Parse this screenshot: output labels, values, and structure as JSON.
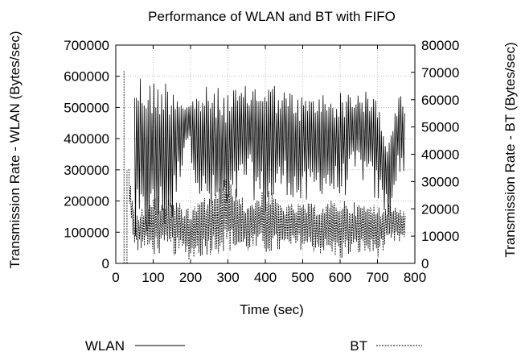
{
  "chart_data": {
    "type": "line",
    "title": "Performance of WLAN and BT with FIFO",
    "xlabel": "Time (sec)",
    "ylabel_left": "Transmission Rate - WLAN (Bytes/sec)",
    "ylabel_right": "Transmission Rate - BT (Bytes/sec)",
    "xlim": [
      0,
      800
    ],
    "ylim_left": [
      0,
      700000
    ],
    "ylim_right": [
      0,
      80000
    ],
    "xticks": [
      "0",
      "100",
      "200",
      "300",
      "400",
      "500",
      "600",
      "700",
      "800"
    ],
    "yticks_left": [
      "0",
      "100000",
      "200000",
      "300000",
      "400000",
      "500000",
      "600000",
      "700000"
    ],
    "yticks_right": [
      "0",
      "10000",
      "20000",
      "30000",
      "40000",
      "50000",
      "60000",
      "70000",
      "80000"
    ],
    "grid": true,
    "legend_position": "bottom",
    "series": [
      {
        "name": "WLAN",
        "axis": "left",
        "style": "solid",
        "envelope_x": [
          50,
          100,
          150,
          190,
          230,
          300,
          350,
          400,
          450,
          500,
          550,
          600,
          650,
          700,
          730,
          760,
          775
        ],
        "envelope_high": [
          630000,
          590000,
          600000,
          510000,
          570000,
          560000,
          570000,
          600000,
          560000,
          540000,
          550000,
          550000,
          560000,
          540000,
          390000,
          560000,
          520000
        ],
        "envelope_low": [
          20000,
          90000,
          100000,
          400000,
          160000,
          120000,
          250000,
          130000,
          230000,
          160000,
          220000,
          190000,
          280000,
          180000,
          130000,
          290000,
          200000
        ]
      },
      {
        "name": "BT",
        "axis": "right",
        "style": "dashed",
        "envelope_x": [
          35,
          50,
          100,
          150,
          200,
          250,
          300,
          350,
          400,
          450,
          500,
          550,
          600,
          650,
          700,
          740,
          775
        ],
        "envelope_high": [
          35000,
          18000,
          25000,
          24000,
          20000,
          26000,
          32000,
          22000,
          28000,
          22000,
          22000,
          22000,
          24000,
          22000,
          22000,
          22000,
          20000
        ],
        "envelope_low": [
          20000,
          5000,
          3000,
          3000,
          1000,
          3000,
          4000,
          4000,
          3000,
          4000,
          5000,
          3000,
          1000,
          3000,
          2000,
          6000,
          8000
        ]
      }
    ]
  }
}
